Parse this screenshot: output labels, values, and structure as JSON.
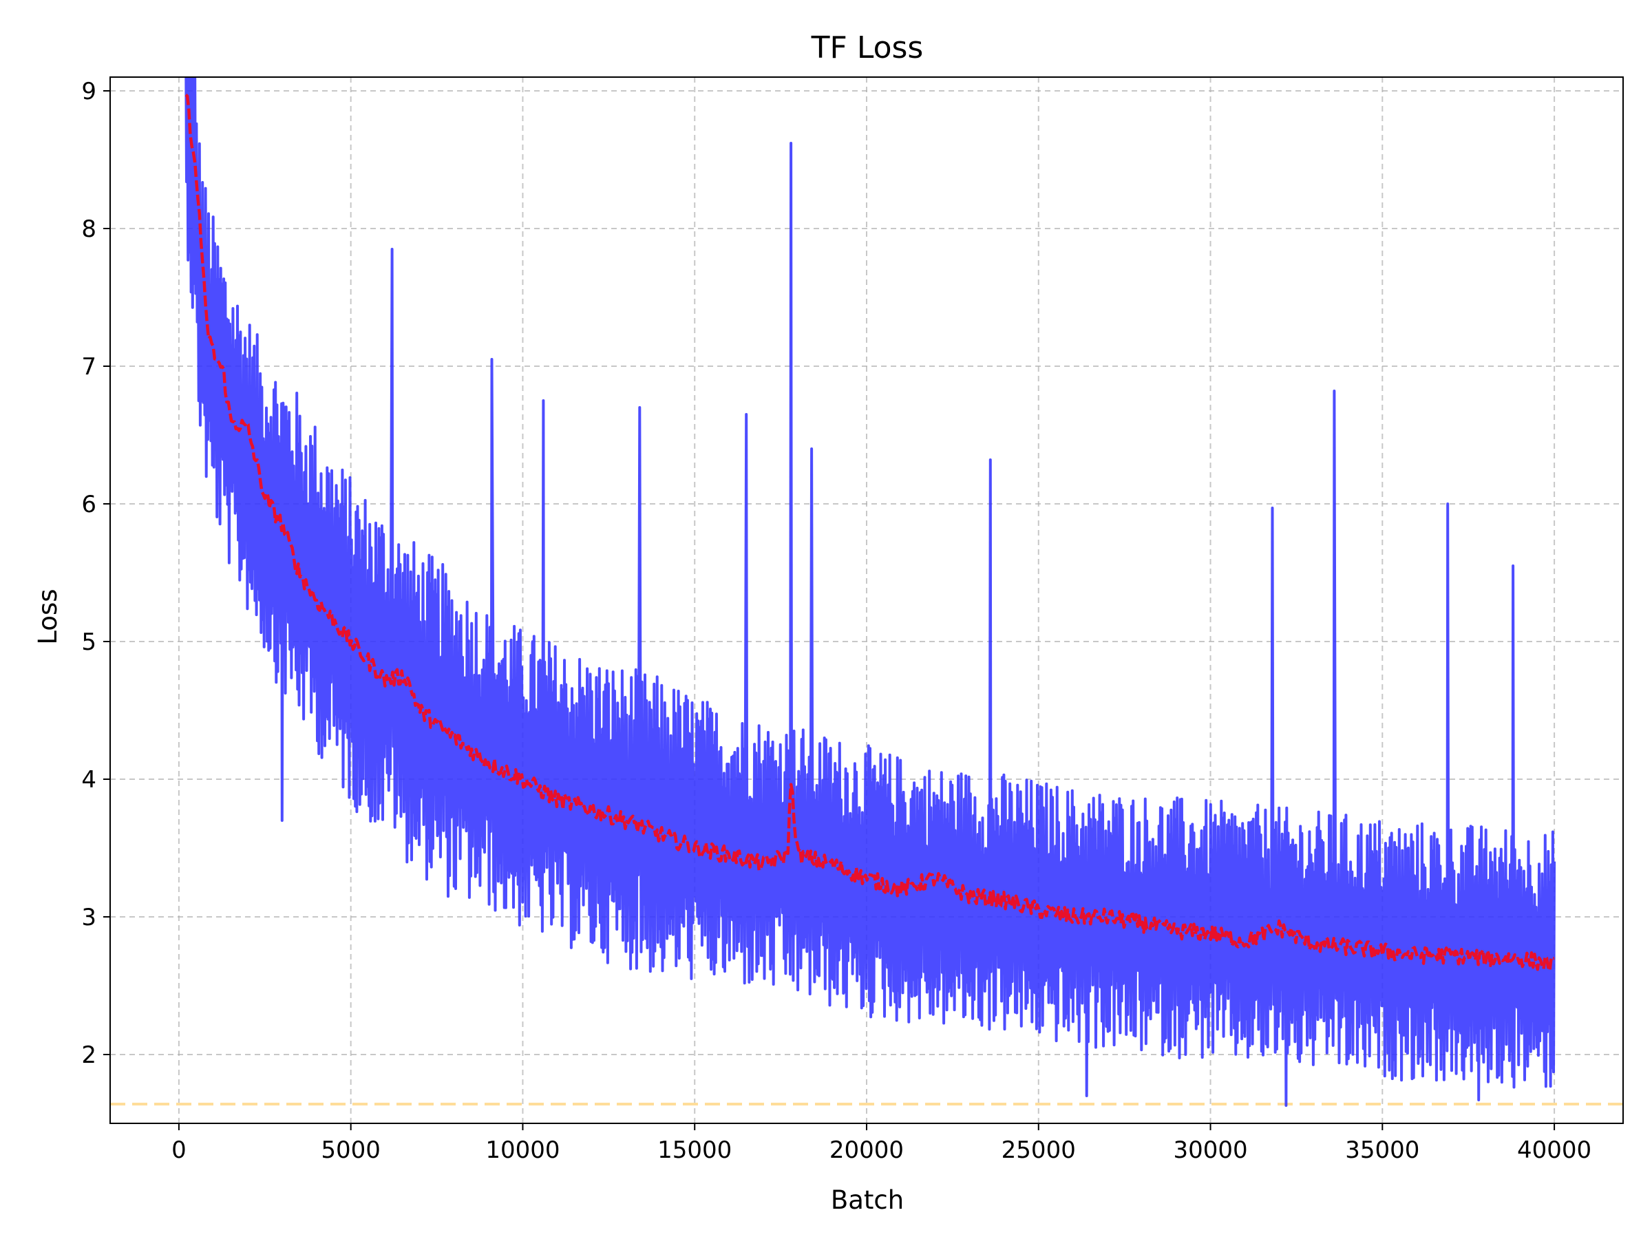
{
  "chart_data": {
    "type": "line",
    "title": "TF Loss",
    "xlabel": "Batch",
    "ylabel": "Loss",
    "xlim": [
      -2000,
      42000
    ],
    "ylim": [
      1.5,
      9.1
    ],
    "xticks": [
      0,
      5000,
      10000,
      15000,
      20000,
      25000,
      30000,
      35000,
      40000
    ],
    "yticks": [
      2,
      3,
      4,
      5,
      6,
      7,
      8,
      9
    ],
    "grid": true,
    "legend": "none",
    "colors": {
      "raw": "#3333ff",
      "smoothed": "#e8102a",
      "reference": "#ffdd99"
    },
    "reference_line": {
      "y": 1.64,
      "style": "dashed"
    },
    "series": [
      {
        "style": "solid",
        "x": [
          0,
          200,
          400,
          600,
          800,
          1000,
          1500,
          2000,
          2500,
          3000,
          4000,
          5000,
          6000,
          7000,
          8000,
          9000,
          10000,
          12000,
          14000,
          16000,
          18000,
          20000,
          22000,
          24000,
          26000,
          28000,
          30000,
          32000,
          34000,
          36000,
          38000,
          40000
        ],
        "y_center": [
          9.0,
          8.9,
          8.4,
          7.6,
          7.2,
          7.0,
          6.6,
          6.3,
          6.0,
          5.8,
          5.4,
          5.0,
          4.75,
          4.5,
          4.3,
          4.15,
          4.0,
          3.8,
          3.65,
          3.5,
          3.4,
          3.25,
          3.15,
          3.1,
          3.0,
          2.95,
          2.9,
          2.85,
          2.8,
          2.75,
          2.72,
          2.68
        ],
        "y_spread": [
          0.3,
          0.9,
          1.1,
          1.1,
          1.1,
          1.1,
          1.1,
          1.1,
          1.1,
          1.2,
          1.2,
          1.2,
          1.2,
          1.2,
          1.2,
          1.1,
          1.1,
          1.1,
          1.1,
          1.0,
          1.0,
          1.0,
          0.95,
          0.95,
          0.95,
          0.95,
          0.95,
          0.95,
          0.95,
          0.95,
          0.95,
          0.95
        ],
        "spikes": [
          {
            "x": 6200,
            "y": 7.85
          },
          {
            "x": 9100,
            "y": 7.05
          },
          {
            "x": 10600,
            "y": 6.75
          },
          {
            "x": 13400,
            "y": 6.7
          },
          {
            "x": 16500,
            "y": 6.65
          },
          {
            "x": 17800,
            "y": 8.62
          },
          {
            "x": 18400,
            "y": 6.4
          },
          {
            "x": 23600,
            "y": 6.32
          },
          {
            "x": 33600,
            "y": 6.82
          },
          {
            "x": 36900,
            "y": 6.0
          },
          {
            "x": 31800,
            "y": 5.97
          },
          {
            "x": 38800,
            "y": 5.55
          },
          {
            "x": 3000,
            "y": 3.7
          },
          {
            "x": 32200,
            "y": 1.63
          },
          {
            "x": 26400,
            "y": 1.7
          },
          {
            "x": 37800,
            "y": 1.67
          }
        ]
      },
      {
        "style": "dashed",
        "x": [
          200,
          400,
          600,
          800,
          1000,
          1300,
          1500,
          2000,
          2500,
          3000,
          3500,
          4000,
          5000,
          6000,
          6600,
          7000,
          8000,
          9000,
          10000,
          11000,
          12000,
          13000,
          14000,
          15000,
          16000,
          17000,
          17700,
          17800,
          18000,
          19000,
          20000,
          21000,
          22000,
          23000,
          24000,
          25000,
          26000,
          27000,
          28000,
          29000,
          30000,
          31000,
          32000,
          33000,
          34000,
          35000,
          36000,
          37000,
          38000,
          39000,
          40000
        ],
        "y": [
          9.0,
          8.6,
          8.1,
          7.3,
          7.1,
          6.95,
          6.6,
          6.55,
          6.05,
          5.85,
          5.5,
          5.3,
          5.0,
          4.72,
          4.75,
          4.5,
          4.3,
          4.12,
          4.0,
          3.85,
          3.78,
          3.7,
          3.6,
          3.5,
          3.45,
          3.38,
          3.45,
          3.98,
          3.45,
          3.38,
          3.28,
          3.2,
          3.28,
          3.15,
          3.12,
          3.05,
          3.0,
          3.0,
          2.95,
          2.9,
          2.88,
          2.82,
          2.92,
          2.8,
          2.78,
          2.75,
          2.72,
          2.72,
          2.7,
          2.7,
          2.65
        ]
      }
    ]
  }
}
